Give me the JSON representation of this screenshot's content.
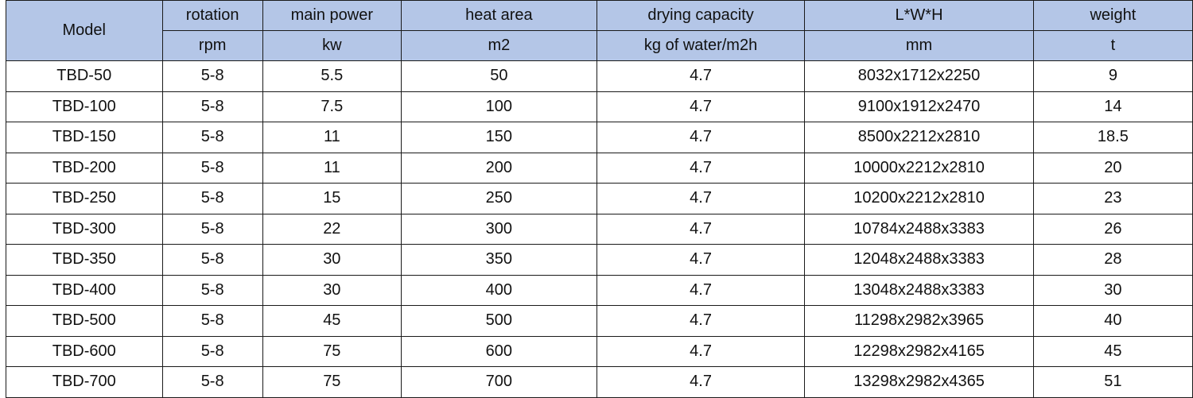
{
  "header": {
    "model": "Model",
    "top": [
      "rotation",
      "main power",
      "heat area",
      "drying capacity",
      "L*W*H",
      "weight"
    ],
    "units": [
      "rpm",
      "kw",
      "m2",
      "kg of water/m2h",
      "mm",
      "t"
    ]
  },
  "rows": [
    [
      "TBD-50",
      "5-8",
      "5.5",
      "50",
      "4.7",
      "8032x1712x2250",
      "9"
    ],
    [
      "TBD-100",
      "5-8",
      "7.5",
      "100",
      "4.7",
      "9100x1912x2470",
      "14"
    ],
    [
      "TBD-150",
      "5-8",
      "11",
      "150",
      "4.7",
      "8500x2212x2810",
      "18.5"
    ],
    [
      "TBD-200",
      "5-8",
      "11",
      "200",
      "4.7",
      "10000x2212x2810",
      "20"
    ],
    [
      "TBD-250",
      "5-8",
      "15",
      "250",
      "4.7",
      "10200x2212x2810",
      "23"
    ],
    [
      "TBD-300",
      "5-8",
      "22",
      "300",
      "4.7",
      "10784x2488x3383",
      "26"
    ],
    [
      "TBD-350",
      "5-8",
      "30",
      "350",
      "4.7",
      "12048x2488x3383",
      "28"
    ],
    [
      "TBD-400",
      "5-8",
      "30",
      "400",
      "4.7",
      "13048x2488x3383",
      "30"
    ],
    [
      "TBD-500",
      "5-8",
      "45",
      "500",
      "4.7",
      "11298x2982x3965",
      "40"
    ],
    [
      "TBD-600",
      "5-8",
      "75",
      "600",
      "4.7",
      "12298x2982x4165",
      "45"
    ],
    [
      "TBD-700",
      "5-8",
      "75",
      "700",
      "4.7",
      "13298x2982x4365",
      "51"
    ]
  ],
  "colors": {
    "header_background": "#b4c6e7",
    "border": "#1a1a1a"
  }
}
